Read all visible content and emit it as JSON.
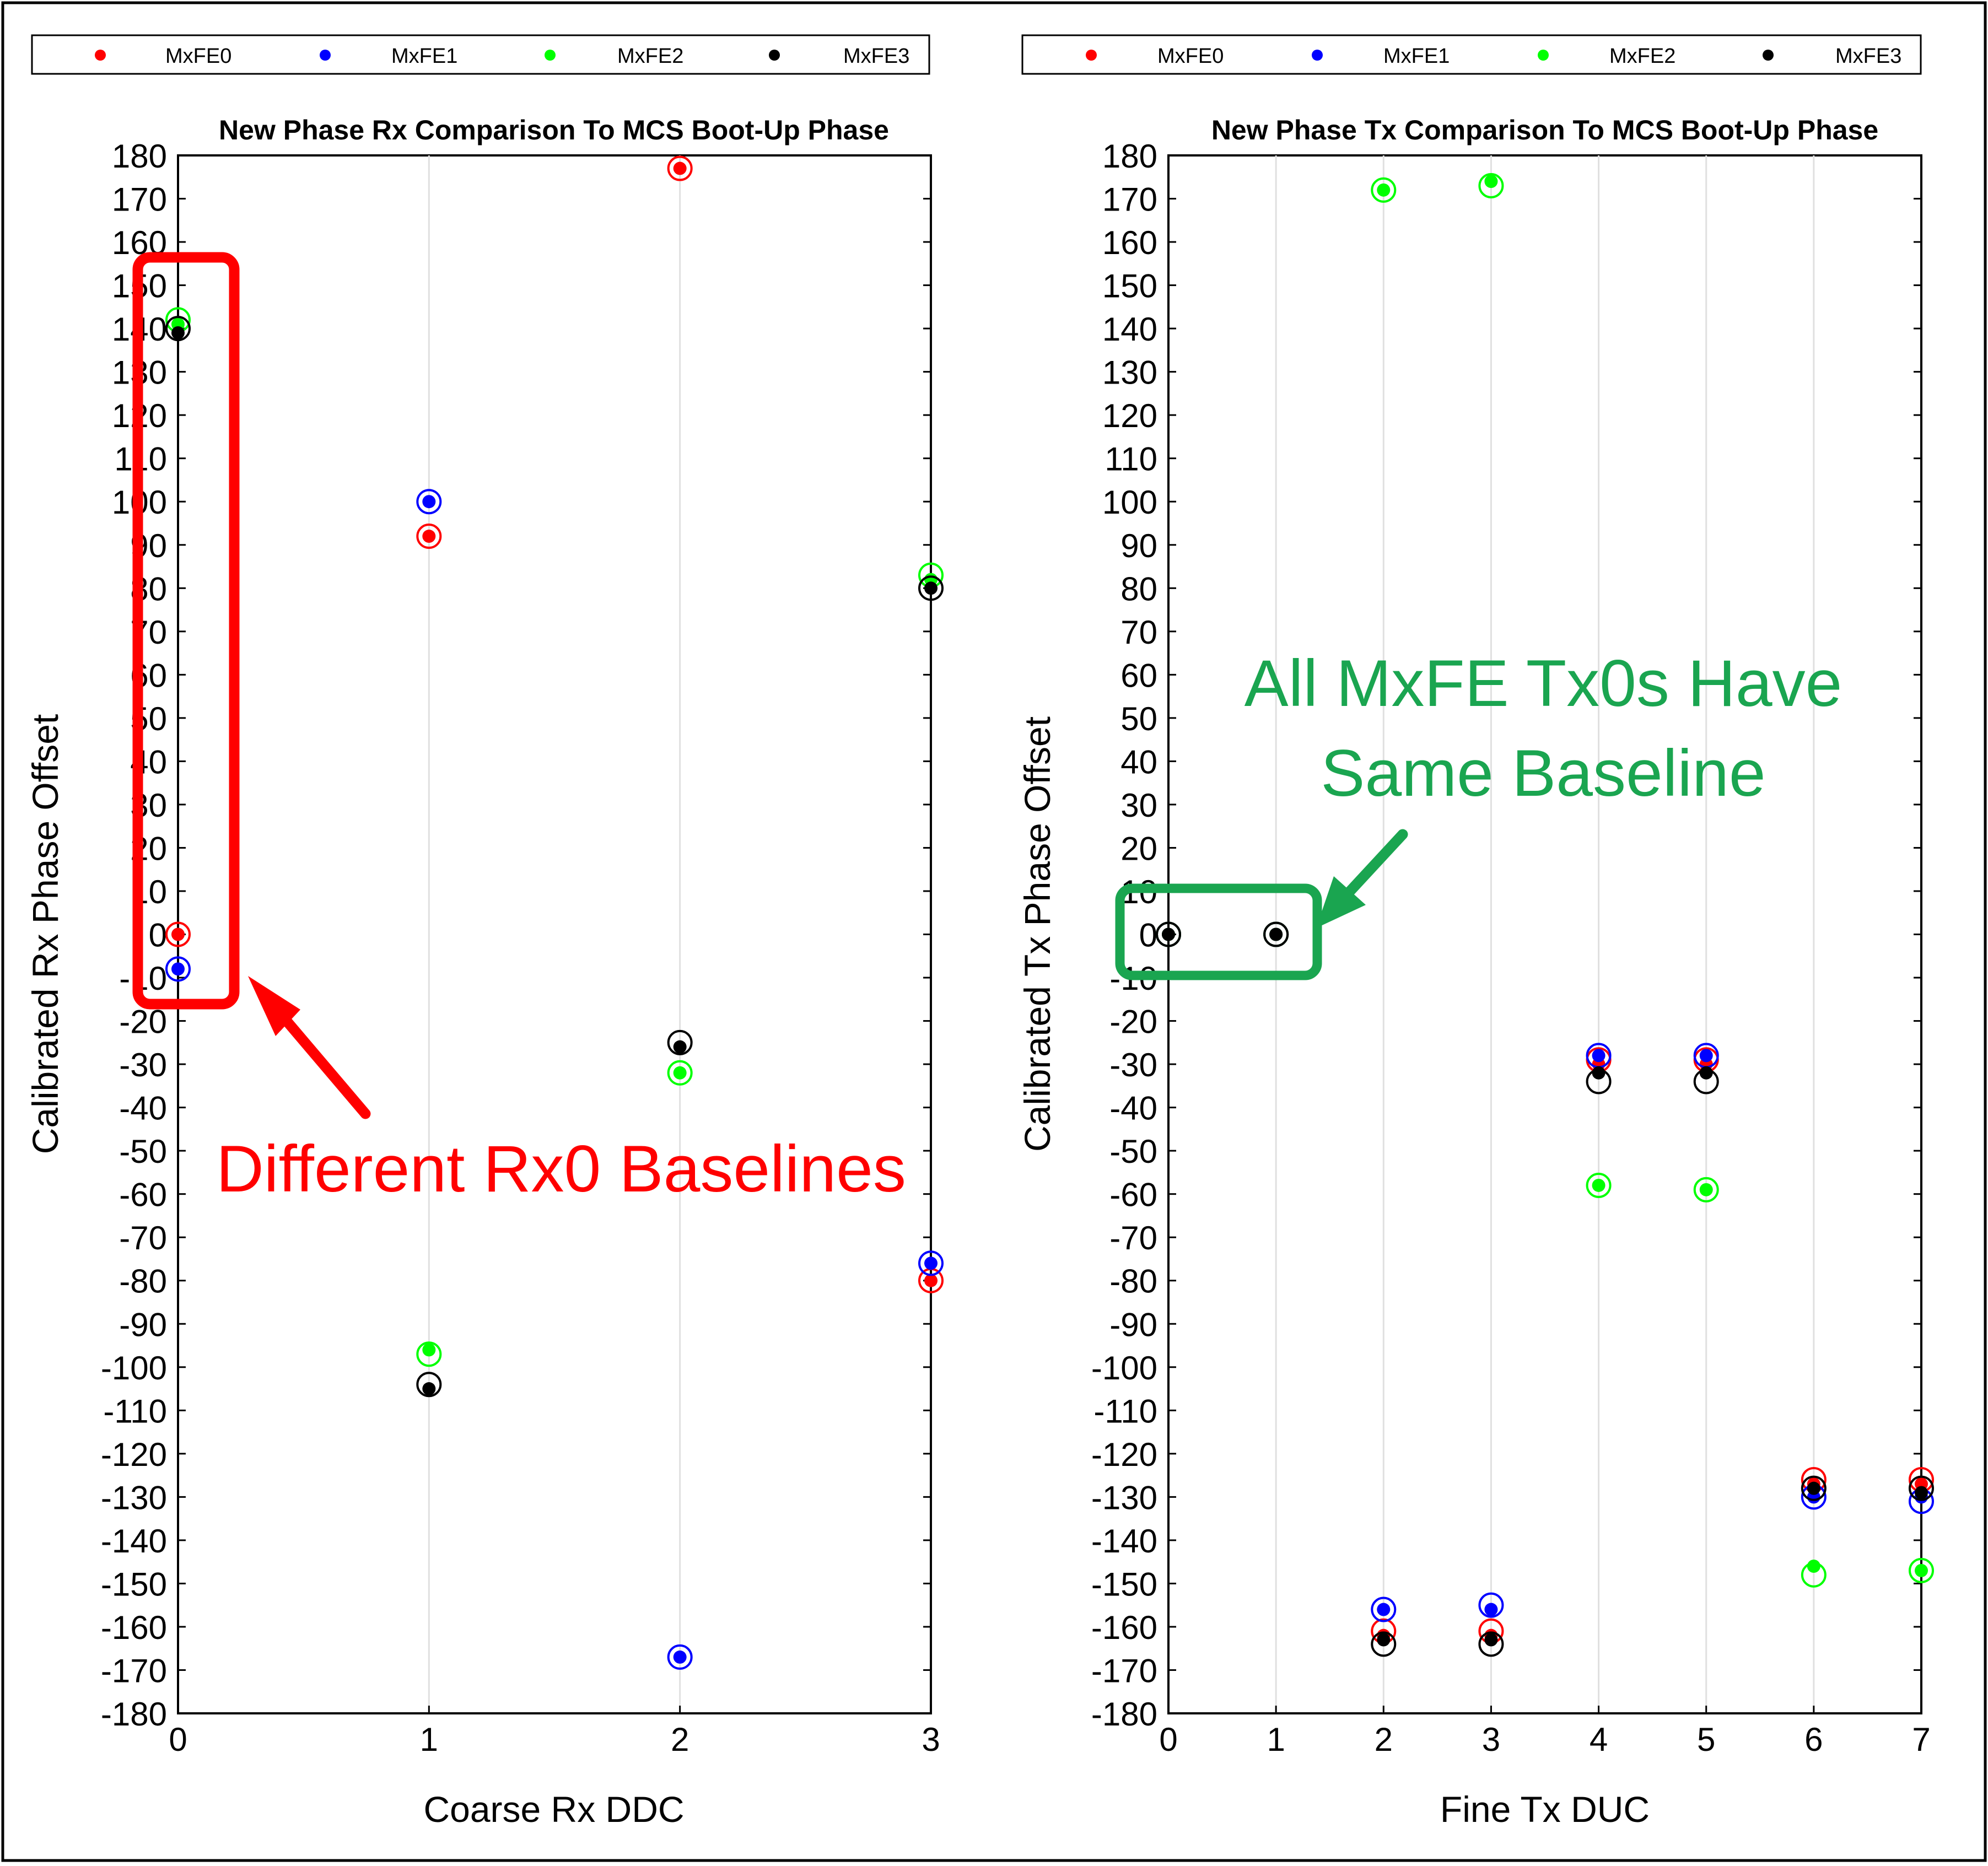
{
  "legend_series": [
    "MxFE0",
    "MxFE1",
    "MxFE2",
    "MxFE3"
  ],
  "colors": {
    "MxFE0": "#ff0000",
    "MxFE1": "#0000ff",
    "MxFE2": "#00ff00",
    "MxFE3": "#000000",
    "annotation_red": "#ff0000",
    "annotation_green": "#1aa550"
  },
  "annotations": {
    "rx_label": "Different Rx0 Baselines",
    "tx_label_line1": "All MxFE Tx0s Have",
    "tx_label_line2": "Same Baseline"
  },
  "chart_data": [
    {
      "type": "scatter",
      "title": "New Phase Rx Comparison To MCS Boot-Up Phase",
      "xlabel": "Coarse Rx DDC",
      "ylabel": "Calibrated Rx Phase Offset",
      "xlim": [
        0,
        3
      ],
      "ylim": [
        -180,
        180
      ],
      "xticks": [
        0,
        1,
        2,
        3
      ],
      "yticks": [
        180,
        170,
        160,
        150,
        140,
        130,
        120,
        110,
        100,
        90,
        80,
        70,
        60,
        50,
        40,
        30,
        20,
        10,
        0,
        -10,
        -20,
        -30,
        -40,
        -50,
        -60,
        -70,
        -80,
        -90,
        -100,
        -110,
        -120,
        -130,
        -140,
        -150,
        -160,
        -170,
        -180
      ],
      "grid": "x-only",
      "legend": "top",
      "series": [
        {
          "name": "MxFE0",
          "x": [
            0,
            1,
            2,
            3
          ],
          "y": [
            0,
            92,
            177,
            -80
          ],
          "y_prev": [
            0,
            92,
            177,
            -80
          ]
        },
        {
          "name": "MxFE1",
          "x": [
            0,
            1,
            2,
            3
          ],
          "y": [
            -8,
            100,
            -167,
            -76
          ],
          "y_prev": [
            -8,
            100,
            -167,
            -76
          ]
        },
        {
          "name": "MxFE2",
          "x": [
            0,
            1,
            2,
            3
          ],
          "y": [
            141,
            -96,
            -32,
            82
          ],
          "y_prev": [
            142,
            -97,
            -32,
            83
          ]
        },
        {
          "name": "MxFE3",
          "x": [
            0,
            1,
            2,
            3
          ],
          "y": [
            139,
            -105,
            -26,
            80
          ],
          "y_prev": [
            140,
            -104,
            -25,
            80
          ]
        }
      ]
    },
    {
      "type": "scatter",
      "title": "New Phase Tx Comparison To MCS Boot-Up Phase",
      "xlabel": "Fine Tx DUC",
      "ylabel": "Calibrated Tx Phase Offset",
      "xlim": [
        0,
        7
      ],
      "ylim": [
        -180,
        180
      ],
      "xticks": [
        0,
        1,
        2,
        3,
        4,
        5,
        6,
        7
      ],
      "yticks": [
        180,
        170,
        160,
        150,
        140,
        130,
        120,
        110,
        100,
        90,
        80,
        70,
        60,
        50,
        40,
        30,
        20,
        10,
        0,
        -10,
        -20,
        -30,
        -40,
        -50,
        -60,
        -70,
        -80,
        -90,
        -100,
        -110,
        -120,
        -130,
        -140,
        -150,
        -160,
        -170,
        -180
      ],
      "grid": "x-only",
      "legend": "top",
      "series": [
        {
          "name": "MxFE0",
          "x": [
            0,
            1,
            2,
            3,
            4,
            5,
            6,
            7
          ],
          "y": [
            0,
            0,
            -162,
            -162,
            -30,
            -30,
            -127,
            -127
          ],
          "y_prev": [
            0,
            0,
            -161,
            -161,
            -29,
            -29,
            -126,
            -126
          ]
        },
        {
          "name": "MxFE1",
          "x": [
            0,
            1,
            2,
            3,
            4,
            5,
            6,
            7
          ],
          "y": [
            0,
            0,
            -156,
            -156,
            -28,
            -28,
            -130,
            -130
          ],
          "y_prev": [
            0,
            0,
            -156,
            -155,
            -28,
            -28,
            -130,
            -131
          ]
        },
        {
          "name": "MxFE2",
          "x": [
            0,
            1,
            2,
            3,
            4,
            5,
            6,
            7
          ],
          "y": [
            0,
            0,
            172,
            174,
            -58,
            -59,
            -146,
            -147
          ],
          "y_prev": [
            0,
            0,
            172,
            173,
            -58,
            -59,
            -148,
            -147
          ]
        },
        {
          "name": "MxFE3",
          "x": [
            0,
            1,
            2,
            3,
            4,
            5,
            6,
            7
          ],
          "y": [
            0,
            0,
            -163,
            -163,
            -32,
            -32,
            -128,
            -129
          ],
          "y_prev": [
            0,
            0,
            -164,
            -164,
            -34,
            -34,
            -128,
            -128
          ]
        }
      ]
    }
  ]
}
